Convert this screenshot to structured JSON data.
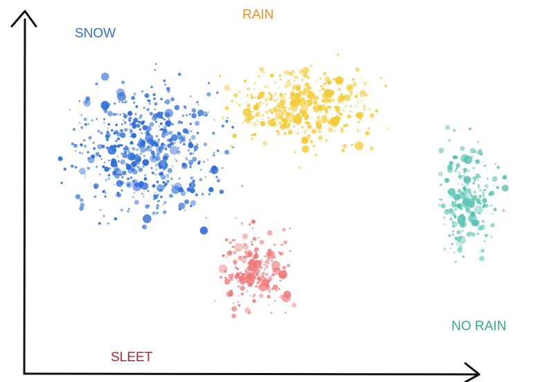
{
  "chart_data": {
    "type": "scatter",
    "title": "",
    "xlabel": "",
    "ylabel": "",
    "grid": false,
    "axes": "arrows-only",
    "xlim": [
      0,
      100
    ],
    "ylim": [
      0,
      100
    ],
    "series": [
      {
        "name": "SNOW",
        "color": "#2f6fd8",
        "center": [
          24,
          62
        ],
        "spread": [
          14,
          16
        ],
        "count": 520
      },
      {
        "name": "RAIN",
        "color": "#f5cc3a",
        "center": [
          56,
          75
        ],
        "spread": [
          12,
          10
        ],
        "count": 380
      },
      {
        "name": "SLEET",
        "color": "#f07a7a",
        "center": [
          46,
          28
        ],
        "spread": [
          6,
          10
        ],
        "count": 220
      },
      {
        "name": "NO RAIN",
        "color": "#5cc4b4",
        "center": [
          89,
          48
        ],
        "spread": [
          5,
          14
        ],
        "count": 200
      }
    ]
  }
}
